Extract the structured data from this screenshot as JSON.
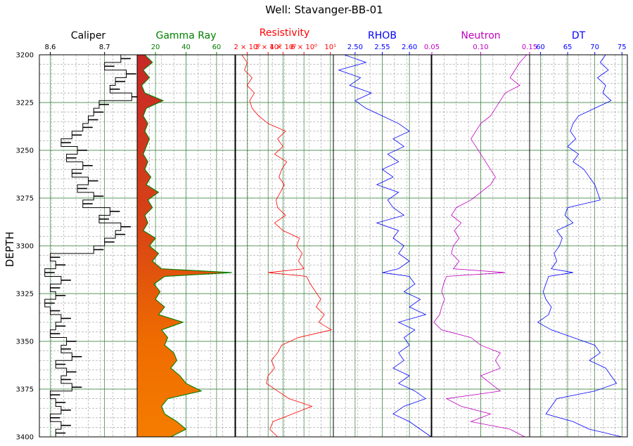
{
  "figure": {
    "title": "Well: Stavanger-BB-01"
  },
  "chart_data": {
    "type": "well-log",
    "depth": {
      "label": "DEPTH",
      "range": [
        3200,
        3400
      ],
      "ticks": [
        3200,
        3225,
        3250,
        3275,
        3300,
        3325,
        3350,
        3375,
        3400
      ]
    },
    "grid": true,
    "tracks": [
      {
        "id": "caliper",
        "name": "Caliper",
        "color": "#000000",
        "xlim": [
          8.58,
          8.76
        ],
        "tick_labels": [
          "8.6",
          "8.7"
        ],
        "tick_values": [
          8.6,
          8.7
        ],
        "style": "step",
        "depths": [
          3200,
          3204,
          3208,
          3212,
          3216,
          3220,
          3224,
          3228,
          3232,
          3236,
          3240,
          3244,
          3248,
          3252,
          3256,
          3260,
          3264,
          3268,
          3272,
          3276,
          3280,
          3284,
          3288,
          3292,
          3296,
          3300,
          3304,
          3308,
          3312,
          3316,
          3320,
          3324,
          3328,
          3332,
          3336,
          3340,
          3344,
          3348,
          3352,
          3356,
          3360,
          3364,
          3368,
          3372,
          3376,
          3380,
          3384,
          3388,
          3392,
          3396,
          3400
        ],
        "values": [
          8.73,
          8.7,
          8.74,
          8.72,
          8.71,
          8.75,
          8.69,
          8.68,
          8.67,
          8.66,
          8.64,
          8.62,
          8.65,
          8.63,
          8.66,
          8.64,
          8.67,
          8.65,
          8.68,
          8.66,
          8.71,
          8.69,
          8.73,
          8.72,
          8.7,
          8.68,
          8.6,
          8.61,
          8.59,
          8.62,
          8.6,
          8.61,
          8.59,
          8.6,
          8.62,
          8.61,
          8.6,
          8.63,
          8.62,
          8.64,
          8.61,
          8.63,
          8.62,
          8.64,
          8.6,
          8.61,
          8.62,
          8.6,
          8.62,
          8.61,
          8.6
        ]
      },
      {
        "id": "gamma",
        "name": "Gamma Ray",
        "color": "#008000",
        "xlim": [
          8,
          72
        ],
        "tick_labels": [
          "20",
          "40",
          "60"
        ],
        "tick_values": [
          20,
          40,
          60
        ],
        "style": "filled",
        "depths": [
          3200,
          3204,
          3208,
          3212,
          3216,
          3220,
          3224,
          3228,
          3232,
          3236,
          3240,
          3244,
          3248,
          3252,
          3256,
          3260,
          3264,
          3268,
          3272,
          3276,
          3280,
          3284,
          3288,
          3292,
          3296,
          3300,
          3304,
          3308,
          3312,
          3314,
          3316,
          3320,
          3324,
          3328,
          3332,
          3336,
          3340,
          3344,
          3348,
          3352,
          3356,
          3360,
          3364,
          3368,
          3372,
          3376,
          3380,
          3384,
          3388,
          3392,
          3396,
          3400
        ],
        "values": [
          13,
          18,
          12,
          16,
          11,
          13,
          25,
          14,
          12,
          15,
          13,
          16,
          14,
          12,
          15,
          13,
          17,
          14,
          22,
          15,
          18,
          13,
          15,
          12,
          20,
          16,
          22,
          18,
          24,
          70,
          26,
          19,
          23,
          20,
          26,
          22,
          38,
          24,
          28,
          26,
          32,
          34,
          30,
          36,
          40,
          50,
          28,
          24,
          26,
          34,
          40,
          30
        ]
      },
      {
        "id": "resistivity",
        "name": "Resistivity",
        "color": "#ff0000",
        "xlim": [
          1.6,
          10.6
        ],
        "scale": "log",
        "tick_labels": [
          "2 × 10⁰",
          "3 × 10⁰",
          "4 × 10⁰",
          "6 × 10⁰",
          "10¹"
        ],
        "tick_values": [
          2,
          3,
          4,
          6,
          10
        ],
        "style": "line",
        "depths": [
          3200,
          3204,
          3208,
          3212,
          3216,
          3220,
          3224,
          3228,
          3232,
          3236,
          3240,
          3244,
          3248,
          3252,
          3256,
          3260,
          3264,
          3268,
          3272,
          3276,
          3280,
          3284,
          3288,
          3292,
          3296,
          3300,
          3304,
          3308,
          3312,
          3314,
          3316,
          3320,
          3324,
          3328,
          3332,
          3336,
          3340,
          3344,
          3348,
          3352,
          3356,
          3360,
          3364,
          3368,
          3372,
          3376,
          3380,
          3384,
          3388,
          3392,
          3396,
          3400
        ],
        "values": [
          1.8,
          2.0,
          1.9,
          2.2,
          2.0,
          2.3,
          2.1,
          2.2,
          2.5,
          3.0,
          4.2,
          3.6,
          4.0,
          3.4,
          4.3,
          3.9,
          3.7,
          4.1,
          3.8,
          3.5,
          3.6,
          4.2,
          3.4,
          4.0,
          5.5,
          5.2,
          5.8,
          5.4,
          6.0,
          3.0,
          6.3,
          6.8,
          7.5,
          8.3,
          7.6,
          8.9,
          8.0,
          10.2,
          5.4,
          3.9,
          3.6,
          3.2,
          3.4,
          3.0,
          2.9,
          3.6,
          4.5,
          7.0,
          4.8,
          3.3,
          3.1,
          3.6
        ]
      },
      {
        "id": "rhob",
        "name": "RHOB",
        "color": "#0000ff",
        "xlim": [
          2.46,
          2.64
        ],
        "tick_labels": [
          "2.50",
          "2.55",
          "2.60"
        ],
        "tick_values": [
          2.5,
          2.55,
          2.6
        ],
        "style": "line",
        "depths": [
          3200,
          3204,
          3208,
          3212,
          3216,
          3220,
          3224,
          3228,
          3232,
          3236,
          3240,
          3244,
          3248,
          3252,
          3256,
          3260,
          3264,
          3268,
          3272,
          3276,
          3280,
          3284,
          3288,
          3292,
          3296,
          3300,
          3304,
          3308,
          3312,
          3314,
          3316,
          3320,
          3324,
          3328,
          3332,
          3336,
          3340,
          3344,
          3348,
          3352,
          3356,
          3360,
          3364,
          3368,
          3372,
          3376,
          3380,
          3384,
          3388,
          3392,
          3396,
          3400
        ],
        "values": [
          2.48,
          2.52,
          2.47,
          2.51,
          2.49,
          2.53,
          2.5,
          2.52,
          2.55,
          2.58,
          2.6,
          2.57,
          2.59,
          2.56,
          2.58,
          2.55,
          2.57,
          2.54,
          2.58,
          2.56,
          2.57,
          2.59,
          2.54,
          2.58,
          2.57,
          2.59,
          2.58,
          2.6,
          2.58,
          2.55,
          2.6,
          2.61,
          2.59,
          2.62,
          2.6,
          2.63,
          2.58,
          2.61,
          2.59,
          2.6,
          2.58,
          2.59,
          2.57,
          2.6,
          2.58,
          2.61,
          2.63,
          2.59,
          2.57,
          2.6,
          2.62,
          2.64
        ]
      },
      {
        "id": "neutron",
        "name": "Neutron",
        "color": "#c000c0",
        "xlim": [
          0.05,
          0.15
        ],
        "tick_labels": [
          "0.05",
          "0.10",
          "0.15"
        ],
        "tick_values": [
          0.05,
          0.1,
          0.15
        ],
        "style": "line",
        "depths": [
          3200,
          3204,
          3208,
          3212,
          3216,
          3220,
          3224,
          3228,
          3232,
          3236,
          3240,
          3244,
          3248,
          3252,
          3256,
          3260,
          3264,
          3268,
          3272,
          3276,
          3280,
          3284,
          3288,
          3292,
          3296,
          3300,
          3304,
          3308,
          3312,
          3314,
          3316,
          3320,
          3324,
          3328,
          3332,
          3336,
          3340,
          3344,
          3348,
          3352,
          3356,
          3360,
          3364,
          3368,
          3372,
          3376,
          3380,
          3384,
          3388,
          3392,
          3396,
          3400
        ],
        "values": [
          0.147,
          0.14,
          0.135,
          0.13,
          0.14,
          0.125,
          0.12,
          0.115,
          0.11,
          0.1,
          0.095,
          0.09,
          0.095,
          0.1,
          0.105,
          0.11,
          0.115,
          0.11,
          0.1,
          0.09,
          0.075,
          0.07,
          0.08,
          0.073,
          0.078,
          0.072,
          0.07,
          0.078,
          0.072,
          0.125,
          0.065,
          0.062,
          0.06,
          0.063,
          0.06,
          0.058,
          0.052,
          0.06,
          0.09,
          0.1,
          0.12,
          0.115,
          0.12,
          0.1,
          0.11,
          0.12,
          0.065,
          0.08,
          0.11,
          0.09,
          0.13,
          0.145
        ]
      },
      {
        "id": "dt",
        "name": "DT",
        "color": "#0000ff",
        "xlim": [
          58,
          76
        ],
        "tick_labels": [
          "60",
          "65",
          "70",
          "75"
        ],
        "tick_values": [
          60,
          65,
          70,
          75
        ],
        "style": "line",
        "depths": [
          3200,
          3204,
          3208,
          3212,
          3216,
          3220,
          3224,
          3228,
          3232,
          3236,
          3240,
          3244,
          3248,
          3252,
          3256,
          3260,
          3264,
          3268,
          3272,
          3276,
          3280,
          3284,
          3288,
          3292,
          3296,
          3300,
          3304,
          3308,
          3312,
          3314,
          3316,
          3320,
          3324,
          3328,
          3332,
          3336,
          3340,
          3344,
          3348,
          3352,
          3356,
          3360,
          3364,
          3368,
          3372,
          3376,
          3380,
          3384,
          3388,
          3392,
          3396,
          3400
        ],
        "values": [
          72,
          71,
          72.5,
          70.5,
          72,
          71.5,
          73,
          70,
          67,
          66,
          65.5,
          66.5,
          65,
          67,
          66,
          68,
          69,
          70,
          70.5,
          71,
          65,
          64.5,
          66,
          63,
          64,
          63.5,
          62.5,
          63,
          62,
          66,
          61.5,
          61,
          60.5,
          61,
          62,
          61.5,
          59.5,
          62,
          66,
          70,
          71,
          69,
          72,
          73,
          74,
          70,
          63,
          62,
          61,
          66,
          69,
          75
        ]
      }
    ]
  }
}
